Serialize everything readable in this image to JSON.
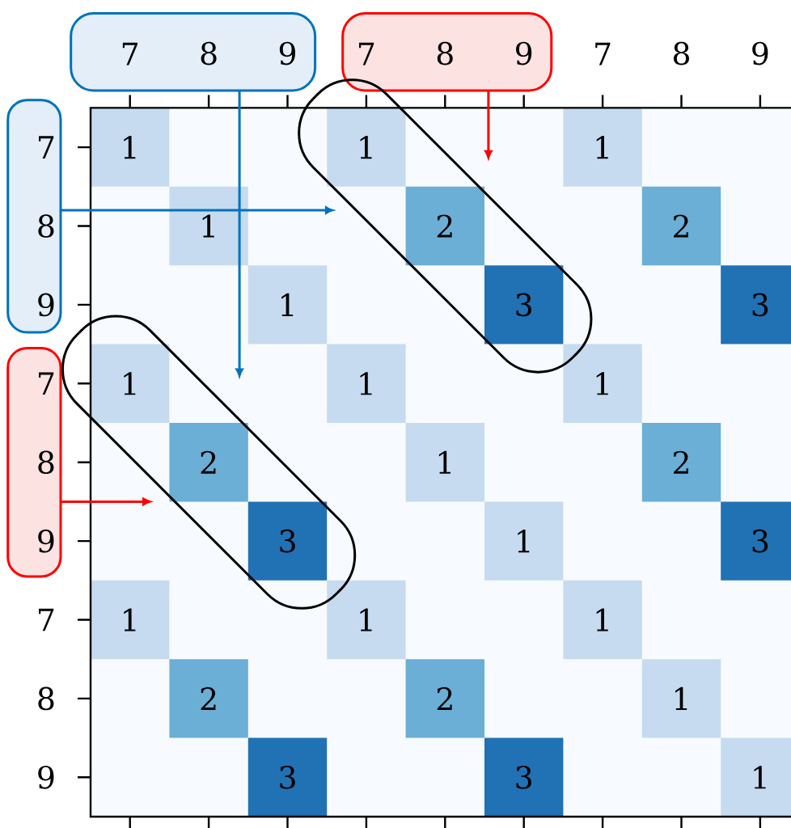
{
  "chart_data": {
    "type": "heatmap",
    "data_labels": true,
    "categories": [
      "7",
      "8",
      "9",
      "7",
      "8",
      "9",
      "7",
      "8",
      "9"
    ],
    "y_categories": [
      "7",
      "8",
      "9",
      "7",
      "8",
      "9",
      "7",
      "8",
      "9"
    ],
    "cells": [
      [
        1,
        null,
        null,
        1,
        null,
        null,
        1,
        null,
        null
      ],
      [
        null,
        1,
        null,
        null,
        2,
        null,
        null,
        2,
        null
      ],
      [
        null,
        null,
        1,
        null,
        null,
        3,
        null,
        null,
        3
      ],
      [
        1,
        null,
        null,
        1,
        null,
        null,
        1,
        null,
        null
      ],
      [
        null,
        2,
        null,
        null,
        1,
        null,
        null,
        2,
        null
      ],
      [
        null,
        null,
        3,
        null,
        null,
        1,
        null,
        null,
        3
      ],
      [
        1,
        null,
        null,
        1,
        null,
        null,
        1,
        null,
        null
      ],
      [
        null,
        2,
        null,
        null,
        2,
        null,
        null,
        1,
        null
      ],
      [
        null,
        null,
        3,
        null,
        null,
        3,
        null,
        null,
        1
      ]
    ]
  }
}
